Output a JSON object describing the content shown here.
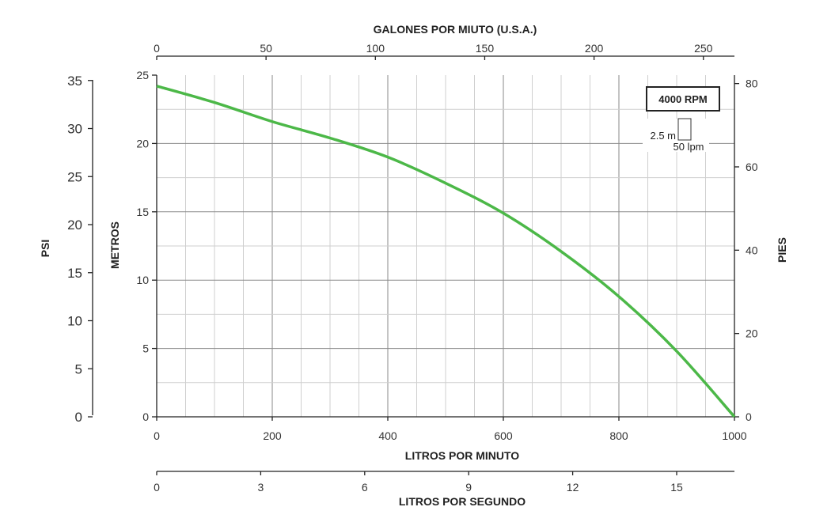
{
  "chart_data": {
    "type": "line",
    "title": "",
    "legend_box": "4000 RPM",
    "scale_key": {
      "vertical": "2.5 m",
      "horizontal": "50 lpm"
    },
    "x_bottom": {
      "label": "LITROS POR MINUTO",
      "ticks": [
        "0",
        "200",
        "400",
        "600",
        "800",
        "1000"
      ],
      "range": [
        0,
        1000
      ]
    },
    "x_top": {
      "label": "GALONES POR MIUTO (U.S.A.)",
      "ticks": [
        "0",
        "50",
        "100",
        "150",
        "200",
        "250"
      ]
    },
    "x_lower": {
      "label": "LITROS POR SEGUNDO",
      "ticks": [
        "0",
        "3",
        "6",
        "9",
        "12",
        "15"
      ]
    },
    "y_left_inner": {
      "label": "METROS",
      "ticks": [
        "0",
        "5",
        "10",
        "15",
        "20",
        "25"
      ],
      "range": [
        0,
        25
      ]
    },
    "y_left_outer": {
      "label": "PSI",
      "ticks": [
        "0",
        "5",
        "10",
        "15",
        "20",
        "25",
        "30",
        "35"
      ]
    },
    "y_right": {
      "label": "PIES",
      "ticks": [
        "0",
        "20",
        "40",
        "60",
        "80"
      ]
    },
    "grid": true,
    "series": [
      {
        "color": "#4cb848",
        "x": [
          0,
          100,
          200,
          300,
          400,
          500,
          600,
          700,
          800,
          900,
          1000
        ],
        "y": [
          24.2,
          23.0,
          21.6,
          20.4,
          19.0,
          17.1,
          14.9,
          12.1,
          8.8,
          4.8,
          0
        ]
      }
    ]
  }
}
